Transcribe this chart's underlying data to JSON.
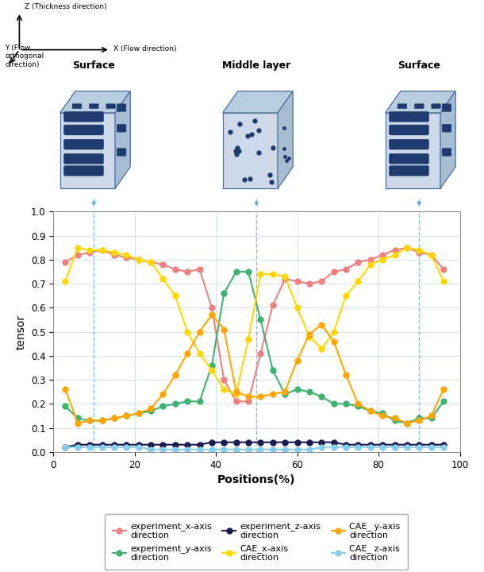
{
  "exp_x_pos": [
    3,
    6,
    9,
    12,
    15,
    18,
    21,
    24,
    27,
    30,
    33,
    36,
    39,
    42,
    45,
    48,
    51,
    54,
    57,
    60,
    63,
    66,
    69,
    72,
    75,
    78,
    81,
    84,
    87,
    90,
    93,
    96
  ],
  "exp_x_val": [
    0.79,
    0.82,
    0.83,
    0.84,
    0.82,
    0.81,
    0.8,
    0.79,
    0.78,
    0.76,
    0.75,
    0.76,
    0.6,
    0.3,
    0.21,
    0.21,
    0.41,
    0.61,
    0.72,
    0.71,
    0.7,
    0.71,
    0.75,
    0.76,
    0.79,
    0.8,
    0.82,
    0.84,
    0.85,
    0.83,
    0.82,
    0.76
  ],
  "exp_y_pos": [
    3,
    6,
    9,
    12,
    15,
    18,
    21,
    24,
    27,
    30,
    33,
    36,
    39,
    42,
    45,
    48,
    51,
    54,
    57,
    60,
    63,
    66,
    69,
    72,
    75,
    78,
    81,
    84,
    87,
    90,
    93,
    96
  ],
  "exp_y_val": [
    0.19,
    0.14,
    0.13,
    0.13,
    0.14,
    0.15,
    0.16,
    0.17,
    0.19,
    0.2,
    0.21,
    0.21,
    0.36,
    0.66,
    0.75,
    0.75,
    0.55,
    0.34,
    0.24,
    0.26,
    0.25,
    0.23,
    0.2,
    0.2,
    0.19,
    0.17,
    0.16,
    0.13,
    0.12,
    0.14,
    0.14,
    0.21
  ],
  "exp_z_pos": [
    3,
    6,
    9,
    12,
    15,
    18,
    21,
    24,
    27,
    30,
    33,
    36,
    39,
    42,
    45,
    48,
    51,
    54,
    57,
    60,
    63,
    66,
    69,
    72,
    75,
    78,
    81,
    84,
    87,
    90,
    93,
    96
  ],
  "exp_z_val": [
    0.02,
    0.03,
    0.03,
    0.03,
    0.03,
    0.03,
    0.03,
    0.03,
    0.03,
    0.03,
    0.03,
    0.03,
    0.04,
    0.04,
    0.04,
    0.04,
    0.04,
    0.04,
    0.04,
    0.04,
    0.04,
    0.04,
    0.04,
    0.03,
    0.03,
    0.03,
    0.03,
    0.03,
    0.03,
    0.03,
    0.03,
    0.03
  ],
  "cae_x_pos": [
    3,
    6,
    9,
    12,
    15,
    18,
    21,
    24,
    27,
    30,
    33,
    36,
    39,
    42,
    45,
    48,
    51,
    54,
    57,
    60,
    63,
    66,
    69,
    72,
    75,
    78,
    81,
    84,
    87,
    90,
    93,
    96
  ],
  "cae_x_val": [
    0.71,
    0.85,
    0.84,
    0.84,
    0.83,
    0.82,
    0.8,
    0.79,
    0.72,
    0.65,
    0.5,
    0.41,
    0.34,
    0.26,
    0.24,
    0.47,
    0.74,
    0.74,
    0.73,
    0.6,
    0.48,
    0.43,
    0.5,
    0.65,
    0.71,
    0.78,
    0.8,
    0.82,
    0.85,
    0.84,
    0.82,
    0.71
  ],
  "cae_y_pos": [
    3,
    6,
    9,
    12,
    15,
    18,
    21,
    24,
    27,
    30,
    33,
    36,
    39,
    42,
    45,
    48,
    51,
    54,
    57,
    60,
    63,
    66,
    69,
    72,
    75,
    78,
    81,
    84,
    87,
    90,
    93,
    96
  ],
  "cae_y_val": [
    0.26,
    0.12,
    0.13,
    0.13,
    0.14,
    0.15,
    0.16,
    0.18,
    0.24,
    0.32,
    0.41,
    0.5,
    0.57,
    0.51,
    0.25,
    0.23,
    0.23,
    0.24,
    0.25,
    0.38,
    0.49,
    0.53,
    0.46,
    0.32,
    0.2,
    0.17,
    0.15,
    0.14,
    0.12,
    0.13,
    0.15,
    0.26
  ],
  "cae_z_pos": [
    3,
    6,
    9,
    12,
    15,
    18,
    21,
    24,
    27,
    30,
    33,
    36,
    39,
    42,
    45,
    48,
    51,
    54,
    57,
    60,
    63,
    66,
    69,
    72,
    75,
    78,
    81,
    84,
    87,
    90,
    93,
    96
  ],
  "cae_z_val": [
    0.02,
    0.02,
    0.02,
    0.02,
    0.02,
    0.02,
    0.02,
    0.01,
    0.01,
    0.01,
    0.01,
    0.01,
    0.01,
    0.01,
    0.01,
    0.01,
    0.01,
    0.01,
    0.01,
    0.01,
    0.01,
    0.02,
    0.02,
    0.02,
    0.02,
    0.02,
    0.02,
    0.02,
    0.02,
    0.02,
    0.02,
    0.02
  ],
  "color_exp_x": "#f08080",
  "color_exp_y": "#3cb371",
  "color_exp_z": "#1a1a4e",
  "color_cae_x": "#ffd700",
  "color_cae_y": "#ffa500",
  "color_cae_z": "#87ceeb",
  "vlines": [
    10,
    50,
    90
  ],
  "xlabel": "Positions(%)",
  "ylabel": "tensor",
  "ylim": [
    0,
    1
  ],
  "xlim": [
    0,
    100
  ],
  "yticks": [
    0,
    0.1,
    0.2,
    0.3,
    0.4,
    0.5,
    0.6,
    0.7,
    0.8,
    0.9,
    1
  ],
  "xticks": [
    0,
    20,
    40,
    60,
    80,
    100
  ],
  "legend_labels": [
    "experiment_x-axis\ndirection",
    "experiment_y-axis\ndirection",
    "experiment_z-axis\ndirection",
    "CAE_x-axis\ndirection",
    "CAE_ y-axis\ndirection",
    "CAE_ z-axis\ndirection"
  ],
  "surface_label": "Surface",
  "middle_label": "Middle layer",
  "coord_z": "Z (Thickness direction)",
  "coord_x": "X (Flow direction)",
  "coord_y": "Y (Flow\northogonal\ndirection)"
}
